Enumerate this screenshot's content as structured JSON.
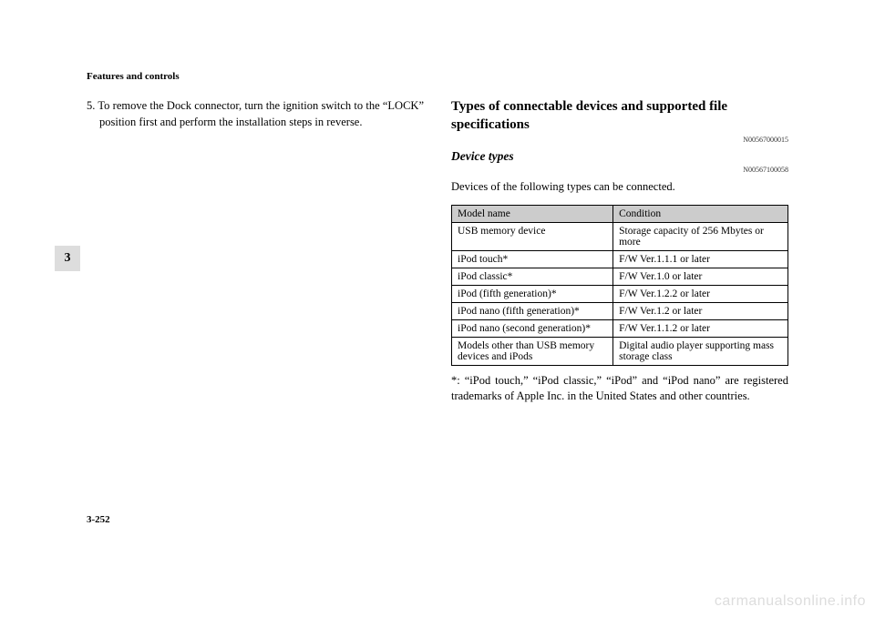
{
  "header": "Features and controls",
  "section_tab": "3",
  "page_number": "3-252",
  "watermark": "carmanualsonline.info",
  "left_column": {
    "step_text": "5. To remove the Dock connector, turn the ignition switch to the “LOCK” position first and perform the installation steps in reverse."
  },
  "right_column": {
    "heading": "Types of connectable devices and supported file specifications",
    "heading_ref": "N00567000015",
    "sub_heading": "Device types",
    "sub_ref": "N00567100058",
    "intro": "Devices of the following types can be connected.",
    "table": {
      "columns": [
        "Model name",
        "Condition"
      ],
      "rows": [
        [
          "USB memory device",
          "Storage capacity of 256 Mbytes or more"
        ],
        [
          "iPod touch*",
          "F/W Ver.1.1.1 or later"
        ],
        [
          "iPod classic*",
          "F/W Ver.1.0 or later"
        ],
        [
          "iPod (fifth generation)*",
          "F/W Ver.1.2.2 or later"
        ],
        [
          "iPod nano (fifth generation)*",
          "F/W Ver.1.2 or later"
        ],
        [
          "iPod nano (second generation)*",
          "F/W Ver.1.1.2 or later"
        ],
        [
          "Models other than USB memory devices and iPods",
          "Digital audio player supporting mass storage class"
        ]
      ]
    },
    "footnote": "*: “iPod touch,” “iPod classic,” “iPod” and “iPod nano” are registered trademarks of Apple Inc. in the United States and other countries."
  }
}
